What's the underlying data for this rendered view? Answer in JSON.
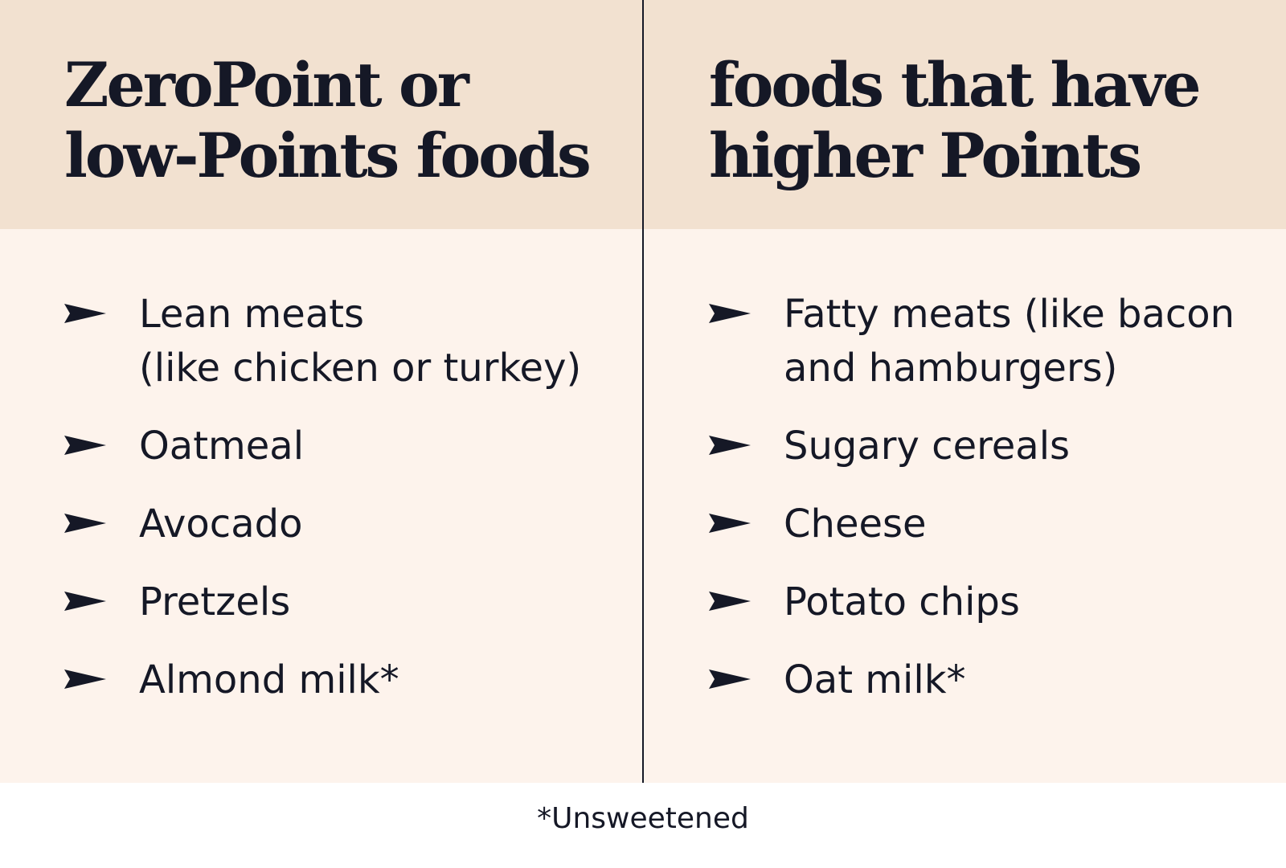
{
  "colors": {
    "header_background": "#f2e1d0",
    "body_background": "#fdf3ec",
    "text": "#151826"
  },
  "left_column": {
    "title_lines": [
      "ZeroPoint or",
      "low-Points foods"
    ],
    "items": [
      {
        "lines": [
          "Lean meats",
          "(like chicken or turkey)"
        ]
      },
      {
        "lines": [
          "Oatmeal"
        ]
      },
      {
        "lines": [
          "Avocado"
        ]
      },
      {
        "lines": [
          "Pretzels"
        ]
      },
      {
        "lines": [
          "Almond milk*"
        ]
      }
    ]
  },
  "right_column": {
    "title_lines": [
      "foods that have",
      "higher Points"
    ],
    "items": [
      {
        "lines": [
          "Fatty meats (like bacon",
          "and hamburgers)"
        ]
      },
      {
        "lines": [
          "Sugary cereals"
        ]
      },
      {
        "lines": [
          "Cheese"
        ]
      },
      {
        "lines": [
          "Potato chips"
        ]
      },
      {
        "lines": [
          "Oat milk*"
        ]
      }
    ]
  },
  "footnote": "*Unsweetened",
  "bullet_icon": "pennant-arrow-icon"
}
